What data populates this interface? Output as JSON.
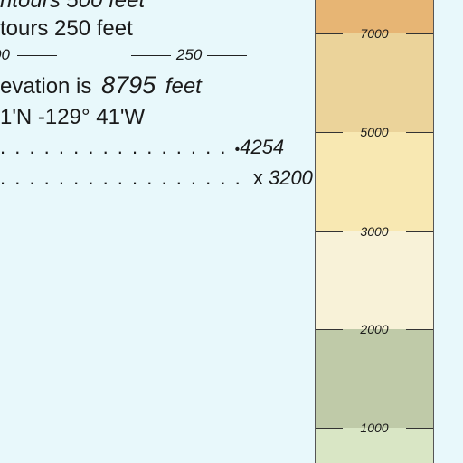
{
  "legend": {
    "contours_line": "ntours 500 feet",
    "supplementary_line": "tours 250 feet",
    "contour_samples": [
      "00",
      "250"
    ],
    "elevation_prefix": "evation is",
    "elevation_value": "8795",
    "elevation_unit": "feet",
    "coordinates": "1'N -129° 41'W",
    "spot_dot_symbol": "•",
    "spot_dot_value": "4254",
    "spot_x_symbol": "x",
    "spot_x_value": "3200"
  },
  "color_scale": {
    "bands": [
      {
        "color": "#e7b574"
      },
      {
        "color": "#ebd39a"
      },
      {
        "color": "#f8e8b2"
      },
      {
        "color": "#f8f2d8"
      },
      {
        "color": "#bfcaa8"
      },
      {
        "color": "#d9e6c5"
      }
    ],
    "ticks": [
      {
        "label": "7000"
      },
      {
        "label": "5000"
      },
      {
        "label": "3000"
      },
      {
        "label": "2000"
      },
      {
        "label": "1000"
      }
    ]
  }
}
